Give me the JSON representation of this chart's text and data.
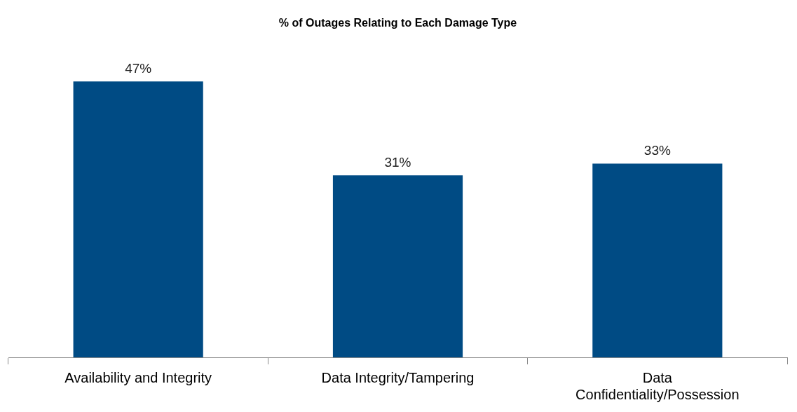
{
  "chart_data": {
    "type": "bar",
    "title": "% of Outages Relating to Each Damage Type",
    "categories": [
      "Availability and Integrity",
      "Data Integrity/Tampering",
      "Data Confidentiality/Possession"
    ],
    "values": [
      47,
      31,
      33
    ],
    "color": "#004b84",
    "value_labels": [
      "47%",
      "31%",
      "33%"
    ],
    "grid": false,
    "legend": false
  }
}
